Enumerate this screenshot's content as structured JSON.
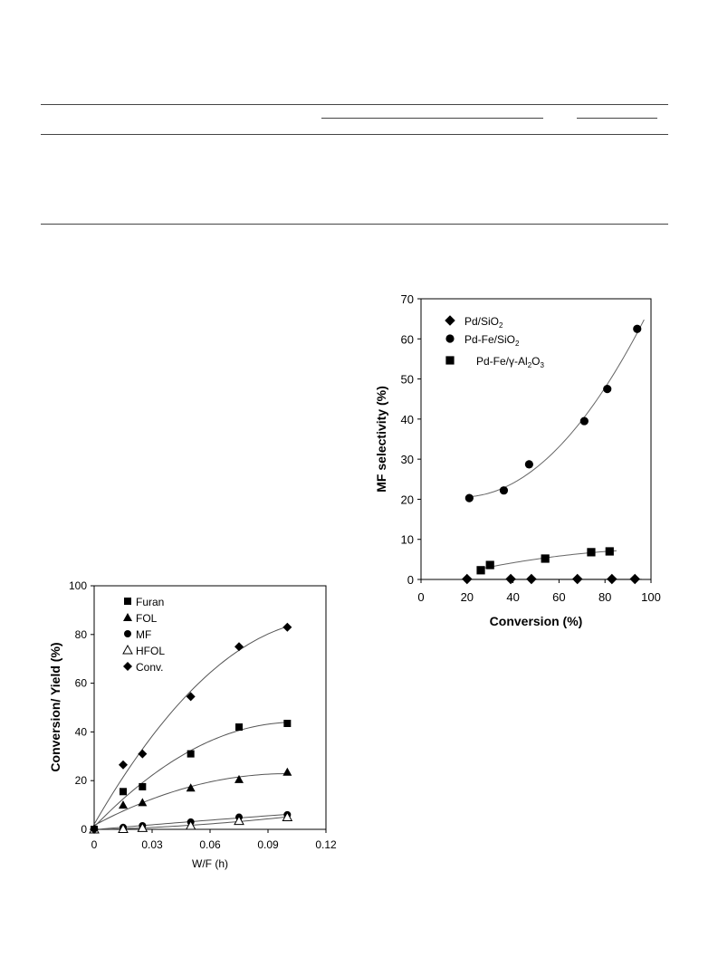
{
  "chart_data": [
    {
      "type": "scatter",
      "xlabel": "W/F (h)",
      "ylabel": "Conversion/ Yield (%)",
      "xlim": [
        0,
        0.12
      ],
      "ylim": [
        0,
        100
      ],
      "xticks": [
        "0",
        "0.03",
        "0.06",
        "0.09",
        "0.12"
      ],
      "yticks": [
        "0",
        "20",
        "40",
        "60",
        "80",
        "100"
      ],
      "legend_position": "top-left",
      "grid": false,
      "trend_lines": true,
      "series": [
        {
          "name": "Furan",
          "marker": "square-filled",
          "x": [
            0,
            0.015,
            0.025,
            0.05,
            0.075,
            0.1
          ],
          "y": [
            0,
            15.5,
            17.5,
            31,
            42,
            43.5
          ]
        },
        {
          "name": "FOL",
          "marker": "triangle-filled",
          "x": [
            0,
            0.015,
            0.025,
            0.05,
            0.075,
            0.1
          ],
          "y": [
            0,
            10,
            11,
            17,
            20.5,
            23.5
          ]
        },
        {
          "name": "MF",
          "marker": "circle-filled",
          "x": [
            0,
            0.015,
            0.025,
            0.05,
            0.075,
            0.1
          ],
          "y": [
            0,
            0.8,
            1.5,
            3,
            5,
            6
          ]
        },
        {
          "name": "HFOL",
          "marker": "triangle-open",
          "x": [
            0,
            0.015,
            0.025,
            0.05,
            0.075,
            0.1
          ],
          "y": [
            0,
            0.2,
            0.6,
            1.5,
            3.5,
            5
          ]
        },
        {
          "name": "Conv.",
          "marker": "diamond-filled",
          "x": [
            0,
            0.015,
            0.025,
            0.05,
            0.075,
            0.1
          ],
          "y": [
            0,
            26.5,
            31,
            54.5,
            75,
            83
          ]
        }
      ]
    },
    {
      "type": "scatter",
      "xlabel": "Conversion (%)",
      "ylabel": "MF selectivity (%)",
      "xlim": [
        0,
        100
      ],
      "ylim": [
        0,
        70
      ],
      "xticks": [
        "0",
        "20",
        "40",
        "60",
        "80",
        "100"
      ],
      "yticks": [
        "0",
        "10",
        "20",
        "30",
        "40",
        "50",
        "60",
        "70"
      ],
      "legend_position": "top-left",
      "grid": false,
      "trend_lines": true,
      "series": [
        {
          "name": "Pd/SiO",
          "sub": "2",
          "suffix": "",
          "marker": "diamond-filled",
          "x": [
            20,
            39,
            48,
            68,
            83,
            93
          ],
          "y": [
            0.1,
            0.1,
            0.1,
            0.1,
            0.1,
            0.1
          ]
        },
        {
          "name": "Pd-Fe/SiO",
          "sub": "2",
          "suffix": "",
          "marker": "circle-filled",
          "x": [
            21,
            36,
            47,
            71,
            81,
            94
          ],
          "y": [
            20.3,
            22.2,
            28.7,
            39.5,
            47.5,
            62.5
          ]
        },
        {
          "name": "Pd-Fe/γ-Al",
          "sub": "2",
          "suffix": "O",
          "sub2": "3",
          "marker": "square-filled",
          "x": [
            26,
            30,
            54,
            74,
            82
          ],
          "y": [
            2.3,
            3.6,
            5.2,
            6.8,
            7
          ]
        }
      ]
    }
  ]
}
